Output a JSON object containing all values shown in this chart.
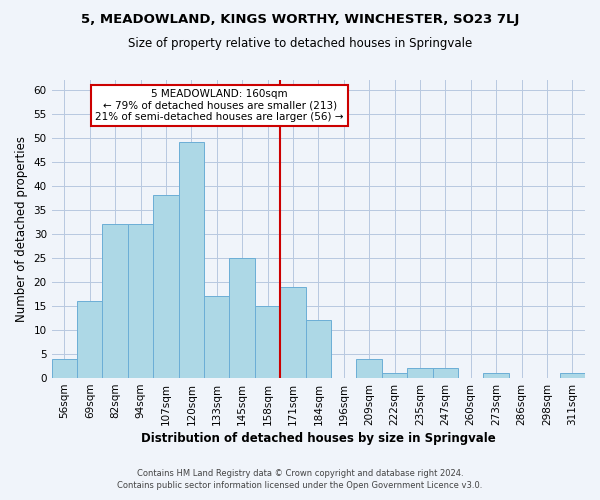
{
  "title": "5, MEADOWLAND, KINGS WORTHY, WINCHESTER, SO23 7LJ",
  "subtitle": "Size of property relative to detached houses in Springvale",
  "xlabel": "Distribution of detached houses by size in Springvale",
  "ylabel": "Number of detached properties",
  "bar_labels": [
    "56sqm",
    "69sqm",
    "82sqm",
    "94sqm",
    "107sqm",
    "120sqm",
    "133sqm",
    "145sqm",
    "158sqm",
    "171sqm",
    "184sqm",
    "196sqm",
    "209sqm",
    "222sqm",
    "235sqm",
    "247sqm",
    "260sqm",
    "273sqm",
    "286sqm",
    "298sqm",
    "311sqm"
  ],
  "bar_values": [
    4,
    16,
    32,
    32,
    38,
    49,
    17,
    25,
    15,
    19,
    12,
    0,
    4,
    1,
    2,
    2,
    0,
    1,
    0,
    0,
    1
  ],
  "bar_color": "#add8e6",
  "bar_edge_color": "#6baed6",
  "reference_line_idx": 8,
  "reference_line_color": "#cc0000",
  "annotation_line1": "5 MEADOWLAND: 160sqm",
  "annotation_line2": "← 79% of detached houses are smaller (213)",
  "annotation_line3": "21% of semi-detached houses are larger (56) →",
  "annotation_box_color": "#cc0000",
  "annotation_text_color": "#000000",
  "ylim": [
    0,
    62
  ],
  "yticks": [
    0,
    5,
    10,
    15,
    20,
    25,
    30,
    35,
    40,
    45,
    50,
    55,
    60
  ],
  "footer_line1": "Contains HM Land Registry data © Crown copyright and database right 2024.",
  "footer_line2": "Contains public sector information licensed under the Open Government Licence v3.0.",
  "bg_color": "#f0f4fa",
  "grid_color": "#b8c8e0"
}
